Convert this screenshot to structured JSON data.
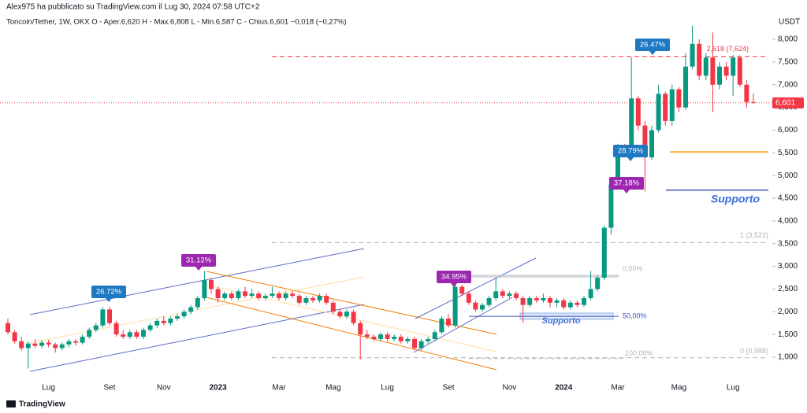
{
  "header": {
    "publisher": "Alex975 ha pubblicato su TradingView.com il Lug 30, 2024 07:58 UTC+2",
    "symbol_line": "Toncoin/Tether, 1W, OKX  O - Aper.6,620  H - Max.6,808  L - Min.6,587  C - Chius.6,601  −0,018 (−0,27%)",
    "currency": "USDT"
  },
  "footer": {
    "brand": "TradingView"
  },
  "chart_data": {
    "type": "candlestick",
    "up_color": "#089981",
    "down_color": "#f23645",
    "ylim": [
      0.55,
      8.52
    ],
    "yticks": [
      {
        "value": 1,
        "label": "1,000"
      },
      {
        "value": 1.5,
        "label": "1,500"
      },
      {
        "value": 2,
        "label": "2,000"
      },
      {
        "value": 2.5,
        "label": "2,500"
      },
      {
        "value": 3,
        "label": "3,000"
      },
      {
        "value": 3.5,
        "label": "3,500"
      },
      {
        "value": 4,
        "label": "4,000"
      },
      {
        "value": 4.5,
        "label": "4,500"
      },
      {
        "value": 5,
        "label": "5,000"
      },
      {
        "value": 5.5,
        "label": "5,500"
      },
      {
        "value": 6,
        "label": "6,000"
      },
      {
        "value": 6.5,
        "label": "6,500"
      },
      {
        "value": 7,
        "label": "7,000"
      },
      {
        "value": 7.5,
        "label": "7,500"
      },
      {
        "value": 8,
        "label": "8,000"
      }
    ],
    "categories": [
      null,
      null,
      null,
      null,
      null,
      null,
      "Lug",
      null,
      null,
      null,
      null,
      null,
      null,
      null,
      null,
      "Set",
      null,
      null,
      null,
      null,
      null,
      null,
      null,
      "Nov",
      null,
      null,
      null,
      null,
      null,
      null,
      null,
      "2023",
      null,
      null,
      null,
      null,
      null,
      null,
      null,
      null,
      "Mar",
      null,
      null,
      null,
      null,
      null,
      null,
      null,
      "Mag",
      null,
      null,
      null,
      null,
      null,
      null,
      null,
      "Lug",
      null,
      null,
      null,
      null,
      null,
      null,
      null,
      null,
      "Set",
      null,
      null,
      null,
      null,
      null,
      null,
      null,
      null,
      "Nov",
      null,
      null,
      null,
      null,
      null,
      null,
      null,
      "2024",
      null,
      null,
      null,
      null,
      null,
      null,
      null,
      "Mar",
      null,
      null,
      null,
      null,
      null,
      null,
      null,
      null,
      "Mag",
      null,
      null,
      null,
      null,
      null,
      null,
      null,
      "Lug",
      null,
      null,
      null
    ],
    "candles": [
      [
        1.75,
        1.85,
        1.5,
        1.55
      ],
      [
        1.55,
        1.6,
        1.3,
        1.35
      ],
      [
        1.35,
        1.45,
        1.15,
        1.2
      ],
      [
        1.2,
        1.35,
        0.75,
        1.3
      ],
      [
        1.3,
        1.4,
        1.2,
        1.25
      ],
      [
        1.25,
        1.38,
        1.2,
        1.32
      ],
      [
        1.32,
        1.38,
        1.22,
        1.28
      ],
      [
        1.28,
        1.32,
        1.1,
        1.2
      ],
      [
        1.2,
        1.32,
        1.15,
        1.28
      ],
      [
        1.28,
        1.4,
        1.22,
        1.35
      ],
      [
        1.35,
        1.4,
        1.25,
        1.32
      ],
      [
        1.32,
        1.5,
        1.28,
        1.45
      ],
      [
        1.45,
        1.65,
        1.4,
        1.6
      ],
      [
        1.6,
        1.75,
        1.55,
        1.7
      ],
      [
        1.7,
        2.1,
        1.65,
        2.05
      ],
      [
        2.05,
        2.1,
        1.7,
        1.75
      ],
      [
        1.75,
        1.8,
        1.45,
        1.5
      ],
      [
        1.5,
        1.6,
        1.4,
        1.45
      ],
      [
        1.45,
        1.6,
        1.4,
        1.55
      ],
      [
        1.55,
        1.6,
        1.4,
        1.45
      ],
      [
        1.45,
        1.65,
        1.4,
        1.6
      ],
      [
        1.6,
        1.75,
        1.55,
        1.7
      ],
      [
        1.7,
        1.85,
        1.65,
        1.8
      ],
      [
        1.8,
        1.9,
        1.7,
        1.75
      ],
      [
        1.75,
        1.9,
        1.7,
        1.85
      ],
      [
        1.85,
        1.95,
        1.8,
        1.9
      ],
      [
        1.9,
        2.05,
        1.85,
        2.0
      ],
      [
        2.0,
        2.15,
        1.95,
        2.1
      ],
      [
        2.1,
        2.35,
        2.05,
        2.3
      ],
      [
        2.3,
        2.9,
        2.25,
        2.7
      ],
      [
        2.7,
        2.75,
        2.4,
        2.5
      ],
      [
        2.5,
        2.55,
        2.2,
        2.3
      ],
      [
        2.3,
        2.45,
        2.25,
        2.4
      ],
      [
        2.4,
        2.45,
        2.25,
        2.3
      ],
      [
        2.3,
        2.5,
        2.25,
        2.45
      ],
      [
        2.45,
        2.55,
        2.3,
        2.35
      ],
      [
        2.35,
        2.5,
        2.3,
        2.4
      ],
      [
        2.4,
        2.45,
        2.25,
        2.3
      ],
      [
        2.3,
        2.4,
        2.25,
        2.35
      ],
      [
        2.35,
        2.55,
        2.3,
        2.4
      ],
      [
        2.4,
        2.45,
        2.25,
        2.3
      ],
      [
        2.3,
        2.45,
        2.25,
        2.4
      ],
      [
        2.4,
        2.45,
        2.3,
        2.35
      ],
      [
        2.35,
        2.4,
        2.15,
        2.2
      ],
      [
        2.2,
        2.35,
        2.15,
        2.3
      ],
      [
        2.3,
        2.35,
        2.2,
        2.25
      ],
      [
        2.25,
        2.4,
        2.2,
        2.35
      ],
      [
        2.35,
        2.4,
        2.15,
        2.2
      ],
      [
        2.2,
        2.25,
        1.95,
        2.0
      ],
      [
        2.0,
        2.05,
        1.85,
        1.9
      ],
      [
        1.9,
        2.05,
        1.85,
        2.0
      ],
      [
        2.0,
        2.05,
        1.7,
        1.75
      ],
      [
        1.75,
        1.8,
        0.95,
        1.5
      ],
      [
        1.5,
        1.6,
        1.4,
        1.45
      ],
      [
        1.45,
        1.5,
        1.35,
        1.4
      ],
      [
        1.4,
        1.55,
        1.35,
        1.5
      ],
      [
        1.5,
        1.55,
        1.35,
        1.4
      ],
      [
        1.4,
        1.5,
        1.35,
        1.45
      ],
      [
        1.45,
        1.5,
        1.3,
        1.35
      ],
      [
        1.35,
        1.45,
        1.3,
        1.4
      ],
      [
        1.4,
        1.45,
        1.15,
        1.2
      ],
      [
        1.2,
        1.4,
        1.15,
        1.35
      ],
      [
        1.35,
        1.45,
        1.3,
        1.4
      ],
      [
        1.4,
        1.6,
        1.35,
        1.55
      ],
      [
        1.55,
        1.9,
        1.5,
        1.85
      ],
      [
        1.85,
        1.95,
        1.65,
        1.7
      ],
      [
        1.7,
        2.75,
        1.65,
        2.55
      ],
      [
        2.55,
        2.6,
        2.35,
        2.4
      ],
      [
        2.4,
        2.45,
        2.15,
        2.2
      ],
      [
        2.2,
        2.25,
        2.0,
        2.05
      ],
      [
        2.05,
        2.2,
        2.0,
        2.15
      ],
      [
        2.15,
        2.35,
        2.1,
        2.3
      ],
      [
        2.3,
        2.75,
        2.25,
        2.45
      ],
      [
        2.45,
        2.5,
        2.3,
        2.35
      ],
      [
        2.35,
        2.45,
        2.3,
        2.4
      ],
      [
        2.4,
        2.45,
        2.25,
        2.3
      ],
      [
        2.3,
        2.35,
        1.75,
        2.15
      ],
      [
        2.15,
        2.35,
        2.1,
        2.3
      ],
      [
        2.3,
        2.35,
        2.2,
        2.25
      ],
      [
        2.25,
        2.4,
        2.2,
        2.3
      ],
      [
        2.3,
        2.35,
        2.1,
        2.2
      ],
      [
        2.2,
        2.3,
        2.1,
        2.25
      ],
      [
        2.25,
        2.3,
        2.05,
        2.1
      ],
      [
        2.1,
        2.25,
        2.05,
        2.2
      ],
      [
        2.2,
        2.25,
        2.1,
        2.15
      ],
      [
        2.15,
        2.35,
        2.1,
        2.3
      ],
      [
        2.3,
        2.9,
        2.25,
        2.5
      ],
      [
        2.5,
        2.8,
        2.45,
        2.75
      ],
      [
        2.75,
        3.9,
        2.7,
        3.85
      ],
      [
        3.85,
        4.85,
        3.7,
        4.8
      ],
      [
        4.8,
        5.7,
        4.7,
        5.6
      ],
      [
        5.6,
        5.7,
        5.4,
        5.5
      ],
      [
        5.5,
        7.6,
        5.45,
        6.7
      ],
      [
        6.7,
        6.75,
        6.0,
        6.1
      ],
      [
        6.1,
        6.2,
        4.65,
        5.4
      ],
      [
        5.4,
        6.1,
        5.35,
        6.0
      ],
      [
        6.0,
        7.0,
        5.95,
        6.8
      ],
      [
        6.8,
        6.85,
        6.1,
        6.2
      ],
      [
        6.2,
        7.0,
        6.1,
        6.9
      ],
      [
        6.9,
        6.95,
        6.4,
        6.5
      ],
      [
        6.5,
        7.7,
        6.45,
        7.4
      ],
      [
        7.4,
        8.3,
        7.35,
        7.9
      ],
      [
        7.9,
        8.0,
        7.1,
        7.2
      ],
      [
        7.2,
        7.7,
        7.1,
        7.6
      ],
      [
        7.6,
        8.15,
        6.4,
        7.0
      ],
      [
        7.0,
        7.5,
        6.9,
        7.4
      ],
      [
        7.4,
        7.5,
        7.1,
        7.2
      ],
      [
        7.2,
        7.65,
        6.75,
        7.6
      ],
      [
        7.6,
        7.65,
        6.95,
        7.0
      ],
      [
        7.0,
        7.1,
        6.5,
        6.62
      ],
      [
        6.62,
        6.808,
        6.587,
        6.601
      ]
    ],
    "last_price": {
      "value": 6.601,
      "label": "6,601",
      "color": "#f23645"
    },
    "levels": [
      {
        "value": 7.624,
        "label": "2,618 (7,624)",
        "color": "#f23645"
      },
      {
        "value": 3.522,
        "label": "1 (3,522)",
        "color": "#b2b5be"
      },
      {
        "value": 0.988,
        "label": "0 (0,988)",
        "color": "#b2b5be"
      },
      {
        "value": 0.97,
        "label": "100,00%",
        "color": "#b2b5be"
      },
      {
        "value": 1.9,
        "label": "50,00%",
        "color": "#3f51b5"
      },
      {
        "value": 2.8,
        "label": "0,00%",
        "color": "#b2b5be"
      },
      {
        "value": 5.52,
        "color": "#ff9800"
      },
      {
        "value": 4.68,
        "color": "#3f51b5"
      }
    ],
    "annotations": [
      {
        "label": "26.72%",
        "color": "#1e78c2"
      },
      {
        "label": "31.12%",
        "color": "#9c27b0"
      },
      {
        "label": "34.95%",
        "color": "#9c27b0"
      },
      {
        "label": "37.18%",
        "color": "#9c27b0"
      },
      {
        "label": "28.79%",
        "color": "#1e78c2"
      },
      {
        "label": "26.47%",
        "color": "#1e78c2"
      },
      {
        "label": "Supporto",
        "color": "#3a6fd8"
      },
      {
        "label": "Supporto",
        "color": "#3a6fd8"
      }
    ]
  }
}
